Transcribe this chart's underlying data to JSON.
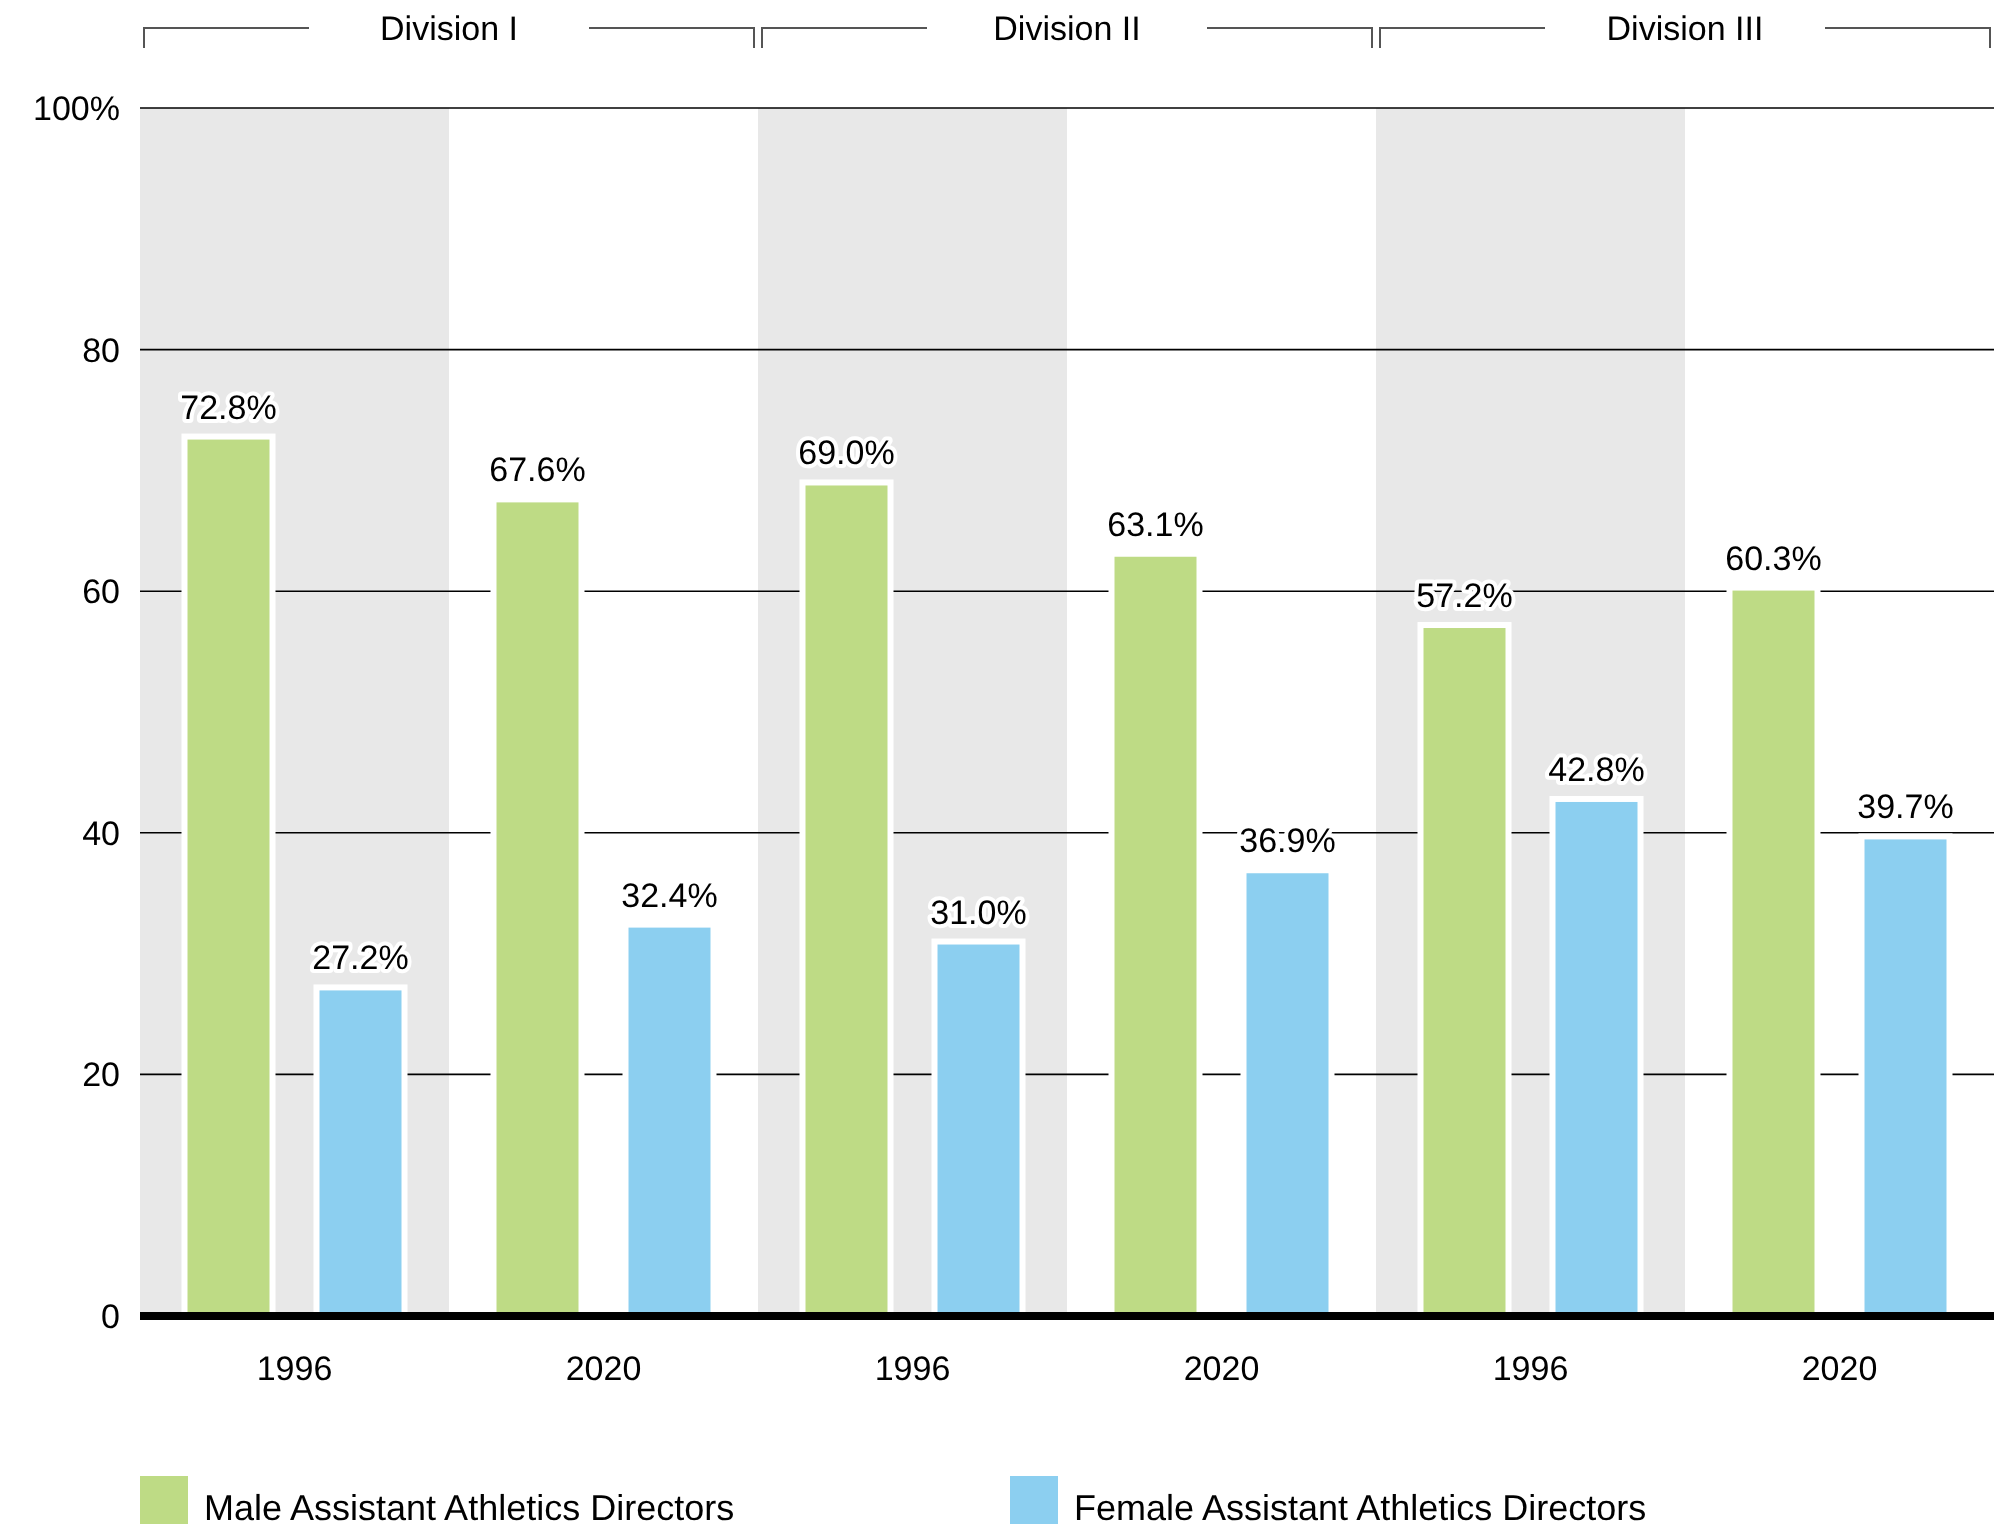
{
  "chart_data": {
    "type": "bar",
    "categories": [
      "1996",
      "2020",
      "1996",
      "2020",
      "1996",
      "2020"
    ],
    "series": [
      {
        "name": "Male Assistant Athletics Directors",
        "color": "#bedb85",
        "values": [
          72.8,
          67.6,
          69.0,
          63.1,
          57.2,
          60.3
        ],
        "value_labels": [
          "72.8%",
          "67.6%",
          "69.0%",
          "63.1%",
          "57.2%",
          "60.3%"
        ]
      },
      {
        "name": "Female Assistant Athletics Directors",
        "color": "#8ccff0",
        "values": [
          27.2,
          32.4,
          31.0,
          36.9,
          42.8,
          39.7
        ],
        "value_labels": [
          "27.2%",
          "32.4%",
          "31.0%",
          "36.9%",
          "42.8%",
          "39.7%"
        ]
      }
    ],
    "ylim": [
      0,
      100
    ],
    "yticks": [
      0,
      20,
      40,
      60,
      80,
      {
        "value": 100,
        "label": "100%"
      }
    ],
    "grid": "y",
    "legend": "bottom left",
    "annotations": [
      "Division I",
      "Division II",
      "Division III"
    ]
  }
}
